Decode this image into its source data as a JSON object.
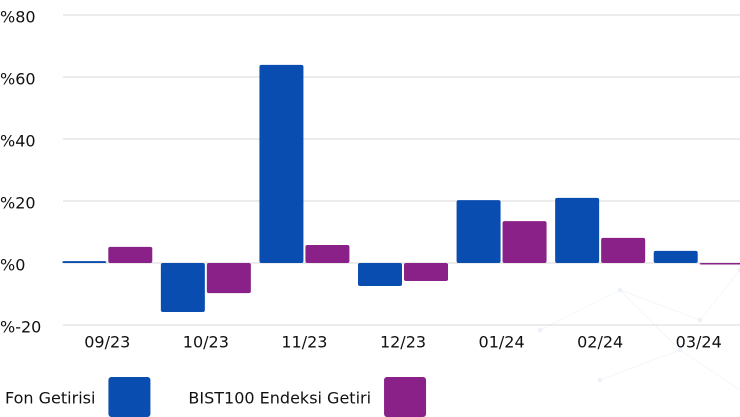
{
  "chart_data": {
    "type": "bar",
    "categories": [
      "09/23",
      "10/23",
      "11/23",
      "12/23",
      "01/24",
      "02/24",
      "03/24"
    ],
    "series": [
      {
        "name": "Fon Getirisi",
        "color": "#0a4db0",
        "values": [
          0.6,
          -15.8,
          63.9,
          -7.4,
          20.3,
          21.0,
          3.9
        ]
      },
      {
        "name": "BIST100 Endeksi Getiri",
        "color": "#8a2189",
        "values": [
          5.2,
          -9.7,
          5.8,
          -5.8,
          13.5,
          8.1,
          -0.5
        ]
      }
    ],
    "ylim": [
      -20,
      80
    ],
    "yticks": [
      {
        "value": -20,
        "label": "%-20"
      },
      {
        "value": 0,
        "label": "%0"
      },
      {
        "value": 20,
        "label": "%20"
      },
      {
        "value": 40,
        "label": "%40"
      },
      {
        "value": 60,
        "label": "%60"
      },
      {
        "value": 80,
        "label": "%80"
      }
    ],
    "grid": true,
    "legend": "bottom"
  }
}
